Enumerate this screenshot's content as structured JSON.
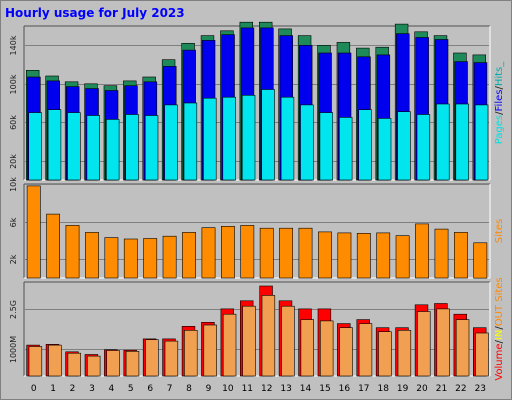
{
  "chart_data": {
    "type": "bar",
    "title": "Hourly usage for July 2023",
    "categories": [
      "0",
      "1",
      "2",
      "3",
      "4",
      "5",
      "6",
      "7",
      "8",
      "9",
      "10",
      "11",
      "12",
      "13",
      "14",
      "15",
      "16",
      "17",
      "18",
      "19",
      "20",
      "21",
      "22",
      "23"
    ],
    "panels": [
      {
        "id": "hits_files_pages",
        "ylim": [
          0,
          160000
        ],
        "y_ticks": [
          {
            "value": 20000,
            "label": "20k"
          },
          {
            "value": 60000,
            "label": "60k"
          },
          {
            "value": 100000,
            "label": "100k"
          },
          {
            "value": 140000,
            "label": "140k"
          }
        ],
        "legend": [
          {
            "label": "Pages",
            "color": "#00e0e0"
          },
          {
            "label": "/",
            "color": "#202020"
          },
          {
            "label": "Files",
            "color": "#0000ff"
          },
          {
            "label": "/",
            "color": "#202020"
          },
          {
            "label": "Hits_",
            "color": "#00aaaa"
          }
        ],
        "series": [
          {
            "name": "Hits",
            "color": "#1e8a5a",
            "values": [
              114000,
              108000,
              102000,
              100000,
              98000,
              103000,
              107000,
              125000,
              142000,
              150000,
              155000,
              164000,
              164000,
              157000,
              150000,
              140000,
              143000,
              137000,
              138000,
              162000,
              154000,
              150000,
              132000,
              130000
            ]
          },
          {
            "name": "Files",
            "color": "#0000ee",
            "values": [
              107000,
              103000,
              97000,
              95000,
              93000,
              98000,
              102000,
              118000,
              135000,
              145000,
              151000,
              158000,
              158000,
              150000,
              140000,
              132000,
              132000,
              128000,
              130000,
              152000,
              148000,
              146000,
              123000,
              122000
            ]
          },
          {
            "name": "Pages",
            "color": "#00e5ee",
            "values": [
              70000,
              73000,
              70000,
              67000,
              63000,
              68000,
              67000,
              78000,
              80000,
              85000,
              86000,
              88000,
              94000,
              86000,
              78000,
              70000,
              65000,
              73000,
              64000,
              71000,
              68000,
              79000,
              79000,
              78000
            ]
          }
        ]
      },
      {
        "id": "sites",
        "ylim": [
          0,
          10000
        ],
        "y_ticks": [
          {
            "value": 2000,
            "label": "2k"
          },
          {
            "value": 6000,
            "label": "6k"
          },
          {
            "value": 10000,
            "label": "10k"
          }
        ],
        "legend": [
          {
            "label": "Sites",
            "color": "#ff8800"
          }
        ],
        "series": [
          {
            "name": "Sites",
            "color": "#ff8c00",
            "values": [
              9800,
              6800,
              5600,
              4850,
              4300,
              4150,
              4200,
              4450,
              4850,
              5350,
              5500,
              5600,
              5300,
              5300,
              5300,
              4900,
              4800,
              4750,
              4800,
              4500,
              5750,
              5200,
              4850,
              3750
            ]
          }
        ]
      },
      {
        "id": "volume",
        "ylim": [
          0,
          3500
        ],
        "y_ticks": [
          {
            "value": 1000,
            "label": "1000M"
          },
          {
            "value": 2500,
            "label": "2.5G"
          }
        ],
        "legend": [
          {
            "label": "Volume",
            "color": "#ff0000"
          },
          {
            "label": "/",
            "color": "#202020"
          },
          {
            "label": "IN",
            "color": "#ffff00"
          },
          {
            "label": "/",
            "color": "#202020"
          },
          {
            "label": "OUT",
            "color": "#ff8800"
          },
          {
            "label": "Sites",
            "color": "#ff8800"
          }
        ],
        "series": [
          {
            "name": "Volume",
            "color": "#ff0000",
            "values": [
              1150,
              1180,
              900,
              800,
              980,
              960,
              1380,
              1380,
              1850,
              2000,
              2500,
              2800,
              3350,
              2800,
              2500,
              2500,
              1950,
              2100,
              1800,
              1800,
              2650,
              2700,
              2300,
              1800
            ]
          },
          {
            "name": "OUT",
            "color": "#f0a050",
            "values": [
              1100,
              1150,
              850,
              740,
              950,
              920,
              1350,
              1300,
              1700,
              1900,
              2300,
              2600,
              3000,
              2600,
              2100,
              2050,
              1800,
              1950,
              1650,
              1700,
              2400,
              2500,
              2100,
              1600
            ]
          }
        ]
      }
    ],
    "grid": true
  }
}
